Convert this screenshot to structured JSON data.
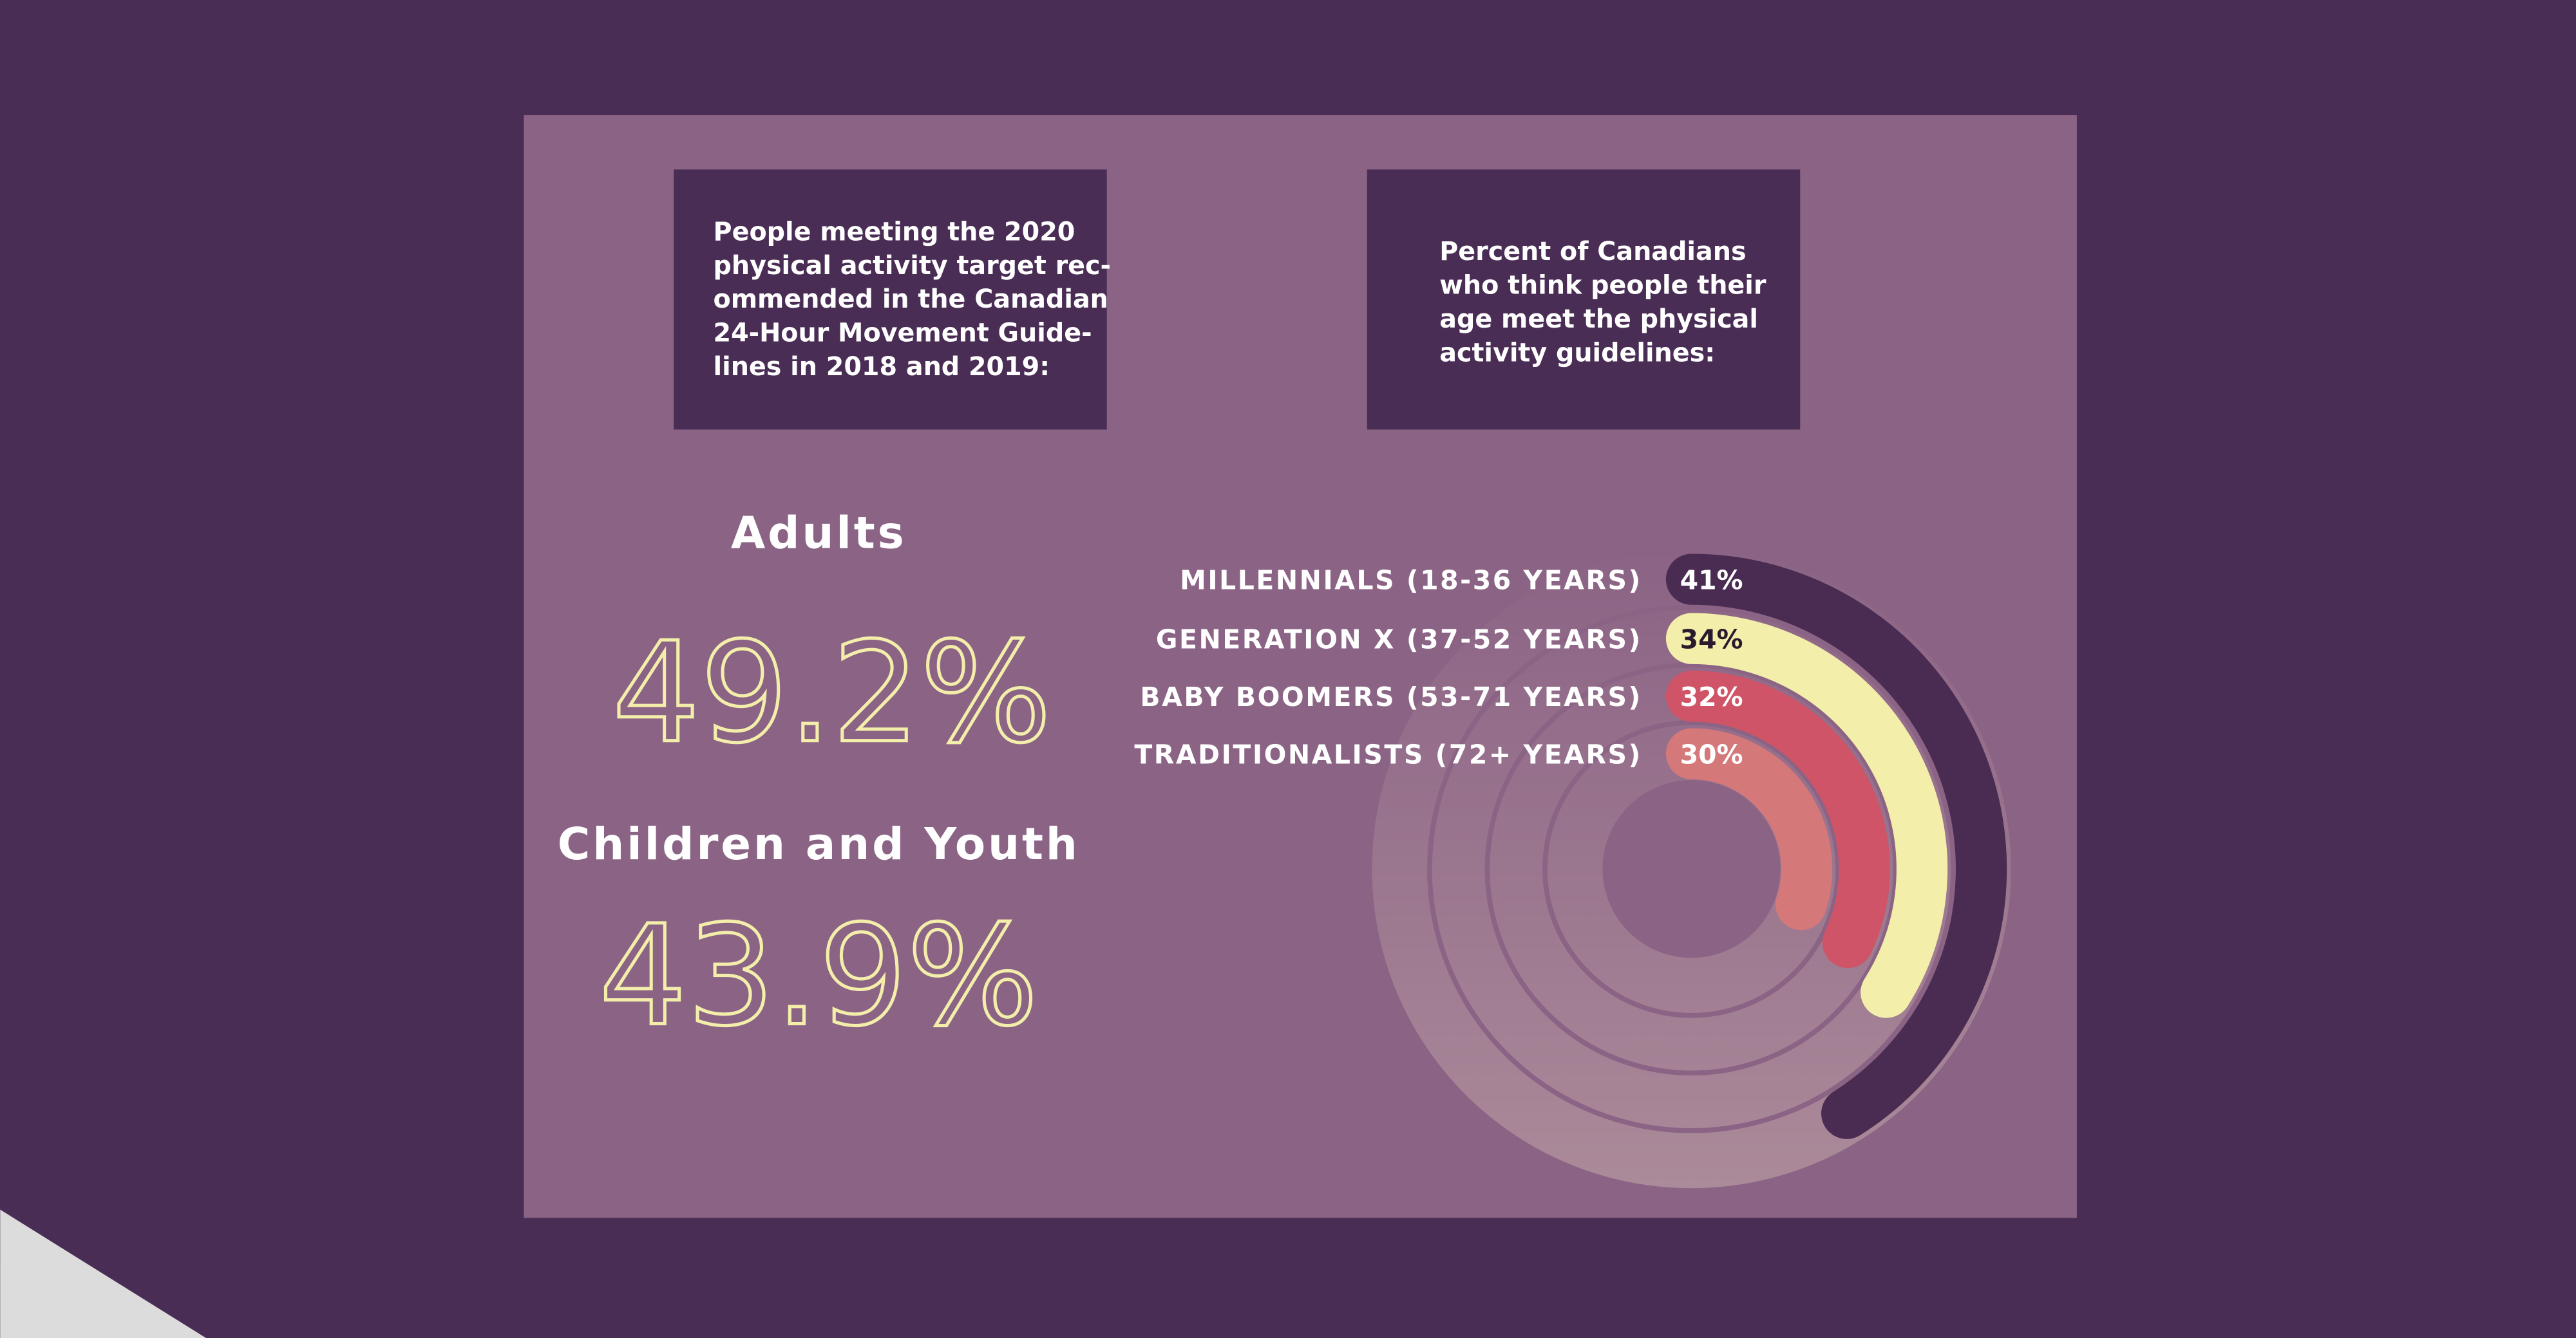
{
  "left_box": {
    "lines": [
      "People meeting the 2020",
      "physical activity target rec-",
      "ommended in the Canadian",
      "24-Hour Movement Guide-",
      "lines in 2018 and 2019:"
    ]
  },
  "right_box": {
    "lines": [
      "Percent of Canadians",
      "who think people their",
      "age meet the physical",
      "activity guidelines:"
    ]
  },
  "stats": [
    {
      "label": "Adults",
      "value": "49.2%"
    },
    {
      "label": "Children and Youth",
      "value": "43.9%"
    }
  ],
  "chart_data": {
    "type": "radial-bar",
    "categories": [
      "MILLENNIALS (18-36 YEARS)",
      "GENERATION X (37-52 YEARS)",
      "BABY BOOMERS (53-71 YEARS)",
      "TRADITIONALISTS (72+ YEARS)"
    ],
    "values": [
      41,
      34,
      32,
      30
    ],
    "value_labels": [
      "41%",
      "34%",
      "32%",
      "30%"
    ],
    "colors": [
      "#4a2c52",
      "#f3eeaa",
      "#cf5468",
      "#d4787a"
    ]
  }
}
